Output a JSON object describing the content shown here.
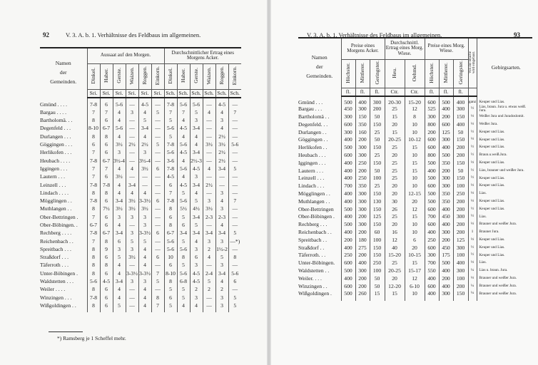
{
  "left": {
    "page_number": "92",
    "running_head": "V. 3. A. b. 1. Verhältnisse des Feldbaus im allgemeinen.",
    "name_header": [
      "Namen",
      "der",
      "Gemeinden."
    ],
    "groups": [
      "Aussaat auf den Morgen.",
      "Durchschnittlicher Ertrag eines Morgens Acker."
    ],
    "columns": [
      "Dinkel.",
      "Haber.",
      "Gerste.",
      "Waizen.",
      "Roggen.",
      "Einkorn.",
      "Dinkel.",
      "Haber.",
      "Gerste.",
      "Waizen.",
      "Roggen.",
      "Einkorn."
    ],
    "units": [
      "Sri.",
      "Sri.",
      "Sri.",
      "Sri.",
      "Sri.",
      "Sri.",
      "Sch.",
      "Sch.",
      "Sch.",
      "Sch.",
      "Sch.",
      "Sch."
    ],
    "rows": [
      {
        "name": "Gmünd . . . .",
        "values": [
          "7-8",
          "6",
          "5-6",
          "—",
          "4-5",
          "—",
          "7-8",
          "5-6",
          "5-6",
          "—",
          "4-5",
          "—"
        ]
      },
      {
        "name": "Bargau . . . .",
        "values": [
          "7",
          "7",
          "4",
          "3",
          "4",
          "5",
          "7",
          "7",
          "5",
          "4",
          "4",
          "7"
        ]
      },
      {
        "name": "Bartholomä. . .",
        "values": [
          "8",
          "6",
          "4",
          "—",
          "5",
          "—",
          "5",
          "4",
          "3",
          "—",
          "3",
          "—"
        ]
      },
      {
        "name": "Degenfeld . . .",
        "values": [
          "8-10",
          "6-7",
          "5-6",
          "—",
          "3-4",
          "—",
          "5-6",
          "4-5",
          "3-4",
          "—",
          "4",
          "—"
        ]
      },
      {
        "name": "Durlangen . . .",
        "values": [
          "8",
          "8",
          "4",
          "—",
          "4",
          "—",
          "5",
          "4",
          "4",
          "—",
          "2½",
          "—"
        ]
      },
      {
        "name": "Göggingen . . .",
        "values": [
          "6",
          "6",
          "3½",
          "2½",
          "2½",
          "5",
          "7-8",
          "5-6",
          "4",
          "3½",
          "3½",
          "5-6"
        ]
      },
      {
        "name": "Herlikofen . . .",
        "values": [
          "7",
          "6",
          "3",
          "—",
          "3",
          "—",
          "5-6",
          "4-5",
          "3-4",
          "—",
          "2½",
          "—"
        ]
      },
      {
        "name": "Heubach . . . .",
        "values": [
          "7-8",
          "6-7",
          "3½-4",
          "—",
          "3½-4",
          "—",
          "3-6",
          "4",
          "2½-3",
          "—",
          "2½",
          "—"
        ]
      },
      {
        "name": "Iggingen . . .",
        "values": [
          "7",
          "7",
          "4",
          "4",
          "3½",
          "6",
          "7-8",
          "5-6",
          "4-5",
          "4",
          "3-4",
          "5"
        ]
      },
      {
        "name": "Lautern . . .",
        "values": [
          "7",
          "6",
          "3½",
          "—",
          "—",
          "—",
          "4-5",
          "4",
          "3",
          "—",
          "—",
          "—"
        ]
      },
      {
        "name": "Leinzell . . .",
        "values": [
          "7-8",
          "7-8",
          "4",
          "3-4",
          "—",
          "—",
          "6",
          "4-5",
          "3-4",
          "2½",
          "—",
          "—"
        ]
      },
      {
        "name": "Lindach . . . .",
        "values": [
          "8",
          "8",
          "4",
          "4",
          "4",
          "—",
          "7",
          "5",
          "4",
          "—",
          "3",
          "—"
        ]
      },
      {
        "name": "Mögglingen . .",
        "values": [
          "7-8",
          "6",
          "3-4",
          "3½",
          "3-3½",
          "6",
          "7-8",
          "5-6",
          "5",
          "3",
          "4",
          "7"
        ]
      },
      {
        "name": "Muthlangen . .",
        "values": [
          "8",
          "7½",
          "3½",
          "3½",
          "3½",
          "—",
          "8",
          "5½",
          "4½",
          "3½",
          "3",
          "—"
        ]
      },
      {
        "name": "Ober-Bettringen .",
        "values": [
          "7",
          "6",
          "3",
          "3",
          "3",
          "—",
          "6",
          "5",
          "3-4",
          "2-3",
          "2-3",
          "—"
        ]
      },
      {
        "name": "Ober-Böbingen. .",
        "values": [
          "6-7",
          "6",
          "4",
          "—",
          "3",
          "—",
          "8",
          "6",
          "5",
          "—",
          "4",
          "—"
        ]
      },
      {
        "name": "Rechberg . . . .",
        "values": [
          "7-8",
          "6-7",
          "3-4",
          "3",
          "3-3½",
          "6",
          "6-7",
          "3-4",
          "3-4",
          "3-4",
          "3-4",
          "5"
        ]
      },
      {
        "name": "Reichenbach . .",
        "values": [
          "7",
          "8",
          "6",
          "5",
          "5",
          "—",
          "5-6",
          "5",
          "4",
          "3",
          "3",
          "—*)"
        ]
      },
      {
        "name": "Spreitbach . . .",
        "values": [
          "8",
          "9",
          "3",
          "3",
          "4",
          "—",
          "5-6",
          "5-6",
          "3",
          "2",
          "1½-2",
          "—"
        ]
      },
      {
        "name": "Straßdorf . . .",
        "values": [
          "8",
          "6",
          "5",
          "3½",
          "4",
          "6",
          "10",
          "8",
          "6",
          "4",
          "5",
          "8"
        ]
      },
      {
        "name": "Täferroth . . .",
        "values": [
          "8",
          "8",
          "4",
          "—",
          "4",
          "—",
          "6",
          "5",
          "3",
          "—",
          "3",
          "—"
        ]
      },
      {
        "name": "Unter-Böbingen .",
        "values": [
          "8",
          "6",
          "4",
          "3-3½",
          "3-3½",
          "7",
          "8-10",
          "5-6",
          "4-5",
          "2-4",
          "3-4",
          "5-6"
        ]
      },
      {
        "name": "Waldstetten . . .",
        "values": [
          "5-6",
          "4-5",
          "3-4",
          "3",
          "3",
          "5",
          "8",
          "6-8",
          "4-5",
          "5",
          "4",
          "6"
        ]
      },
      {
        "name": "Weiler . . . .",
        "values": [
          "8",
          "6",
          "4",
          "—",
          "4",
          "—",
          "5",
          "5",
          "2",
          "2",
          "2",
          "—"
        ]
      },
      {
        "name": "Winzingen . . .",
        "values": [
          "7-8",
          "6",
          "4",
          "—",
          "4",
          "8",
          "6",
          "5",
          "3",
          "—",
          "3",
          "5"
        ]
      },
      {
        "name": "Wißgoldingen . .",
        "values": [
          "8",
          "6",
          "5",
          "—",
          "4",
          "7",
          "5",
          "4",
          "4",
          "—",
          "3",
          "5"
        ]
      }
    ],
    "footnote": "*) Ramsberg je 1 Scheffel mehr."
  },
  "right": {
    "page_number": "93",
    "running_head": "V. 3. A. b. 1. Verhältnisse des Feldbaus im allgemeinen.",
    "name_header": [
      "Namen",
      "der",
      "Gemeinden."
    ],
    "groups": [
      "Preise eines Morgens Acker.",
      "Durchschnittl. Ertrag eines Morg. Wiese.",
      "Preise eines Morg. Wiese."
    ],
    "columns": [
      "Höchster.",
      "Mittlerer.",
      "Geringster.",
      "Heu.",
      "Oehmd.",
      "Höchster.",
      "Mittlerer.",
      "Geringster.",
      "Von der Brache wird eingebaut."
    ],
    "geo_header": "Gebirgsarten.",
    "units": [
      "fl.",
      "fl.",
      "fl.",
      "Ctr.",
      "Ctr.",
      "fl.",
      "fl.",
      "fl.",
      ""
    ],
    "rows": [
      {
        "name": "Gmünd . . .",
        "values": [
          "500",
          "400",
          "300",
          "20-30",
          "15-20",
          "600",
          "500",
          "400",
          "ganz"
        ],
        "geo": "Keuper und Lias."
      },
      {
        "name": "Bargau . . .",
        "values": [
          "450",
          "300",
          "200",
          "25",
          "12",
          "525",
          "400",
          "300",
          "½"
        ],
        "geo": "Lias, braun. Jura u. etwas weiß. Jura."
      },
      {
        "name": "Bartholomä . .",
        "values": [
          "300",
          "150",
          "50",
          "15",
          "8",
          "300",
          "200",
          "150",
          "⅓"
        ],
        "geo": "Weißer Jura und Jurados­lomit."
      },
      {
        "name": "Degenfeld. . .",
        "values": [
          "600",
          "350",
          "150",
          "20",
          "10",
          "800",
          "600",
          "400",
          "⅓"
        ],
        "geo": "Weißer Jura."
      },
      {
        "name": "Durlangen . .",
        "values": [
          "300",
          "160",
          "25",
          "15",
          "10",
          "200",
          "125",
          "50",
          "½"
        ],
        "geo": "Keuper und Lias."
      },
      {
        "name": "Göggingen . .",
        "values": [
          "400",
          "200",
          "50",
          "20-25",
          "10-12",
          "600",
          "300",
          "150",
          "⅓"
        ],
        "geo": "Keuper und Lias."
      },
      {
        "name": "Herlikofen . .",
        "values": [
          "500",
          "300",
          "150",
          "25",
          "15",
          "600",
          "400",
          "200",
          "½"
        ],
        "geo": "Keuper und Lias."
      },
      {
        "name": "Heubach . . .",
        "values": [
          "600",
          "300",
          "25",
          "20",
          "10",
          "800",
          "500",
          "200",
          "½"
        ],
        "geo": "Braun.u.weiß.Jura."
      },
      {
        "name": "Iggingen . . .",
        "values": [
          "400",
          "250",
          "150",
          "25",
          "15",
          "500",
          "350",
          "150",
          "⅓"
        ],
        "geo": "Keuper und Lias."
      },
      {
        "name": "Lautern . . .",
        "values": [
          "400",
          "200",
          "50",
          "25",
          "15",
          "400",
          "200",
          "50",
          "½"
        ],
        "geo": "Lias, brauner und weißer Jura."
      },
      {
        "name": "Leinzell . . .",
        "values": [
          "400",
          "250",
          "100",
          "25",
          "10",
          "500",
          "300",
          "150",
          "½"
        ],
        "geo": "Keuper und Lias."
      },
      {
        "name": "Lindach . . .",
        "values": [
          "700",
          "350",
          "25",
          "20",
          "10",
          "600",
          "300",
          "100",
          "⅓"
        ],
        "geo": "Keuper und Lias."
      },
      {
        "name": "Mögglingen . .",
        "values": [
          "400",
          "300",
          "150",
          "20",
          "12-15",
          "500",
          "350",
          "250",
          "⅓"
        ],
        "geo": "Lias."
      },
      {
        "name": "Muthlangen . .",
        "values": [
          "400",
          "300",
          "130",
          "30",
          "20",
          "500",
          "350",
          "200",
          "⅓"
        ],
        "geo": "Keuper und Lias."
      },
      {
        "name": "Ober-Bettringen",
        "values": [
          "500",
          "300",
          "150",
          "26",
          "12",
          "600",
          "400",
          "200",
          "½"
        ],
        "geo": "Keuper und Lias."
      },
      {
        "name": "Ober-Böbingen .",
        "values": [
          "400",
          "200",
          "125",
          "25",
          "15",
          "700",
          "450",
          "300",
          "½"
        ],
        "geo": "Lias."
      },
      {
        "name": "Rechberg . . .",
        "values": [
          "500",
          "300",
          "150",
          "20",
          "10",
          "600",
          "400",
          "200",
          "⅓"
        ],
        "geo": "Brauner und weißer Jura."
      },
      {
        "name": "Reichenbach . .",
        "values": [
          "400",
          "200",
          "60",
          "16",
          "10",
          "400",
          "300",
          "200",
          "1"
        ],
        "geo": "Brauner Jura."
      },
      {
        "name": "Spreitbach . .",
        "values": [
          "200",
          "180",
          "100",
          "12",
          "6",
          "250",
          "200",
          "125",
          "⅓"
        ],
        "geo": "Keuper und Lias."
      },
      {
        "name": "Straßdorf . .",
        "values": [
          "400",
          "275",
          "150",
          "40",
          "20",
          "600",
          "450",
          "300",
          "½"
        ],
        "geo": "Keuper und Lias."
      },
      {
        "name": "Täferroth. . .",
        "values": [
          "250",
          "200",
          "150",
          "15-20",
          "10-15",
          "300",
          "175",
          "100",
          "½"
        ],
        "geo": "Keuper und Lias."
      },
      {
        "name": "Unter-Böbingen.",
        "values": [
          "600",
          "400",
          "250",
          "25",
          "15",
          "700",
          "500",
          "400",
          "⅓"
        ],
        "geo": "Lias."
      },
      {
        "name": "Waldstetten . .",
        "values": [
          "500",
          "300",
          "100",
          "20-25",
          "15-17",
          "550",
          "400",
          "300",
          "¼"
        ],
        "geo": "Lias u. braun. Jura."
      },
      {
        "name": "Weiler. . . .",
        "values": [
          "400",
          "200",
          "50",
          "20",
          "12",
          "400",
          "200",
          "100",
          "⅓"
        ],
        "geo": "Brauner und weißer Jura."
      },
      {
        "name": "Winzingen . .",
        "values": [
          "600",
          "200",
          "50",
          "12-20",
          "6-10",
          "600",
          "400",
          "200",
          "¼"
        ],
        "geo": "Brauner und weißer Jura."
      },
      {
        "name": "Wißgoldingen .",
        "values": [
          "500",
          "260",
          "15",
          "15",
          "10",
          "400",
          "300",
          "150",
          "¼"
        ],
        "geo": "Brauner und weißer Jura."
      }
    ]
  }
}
